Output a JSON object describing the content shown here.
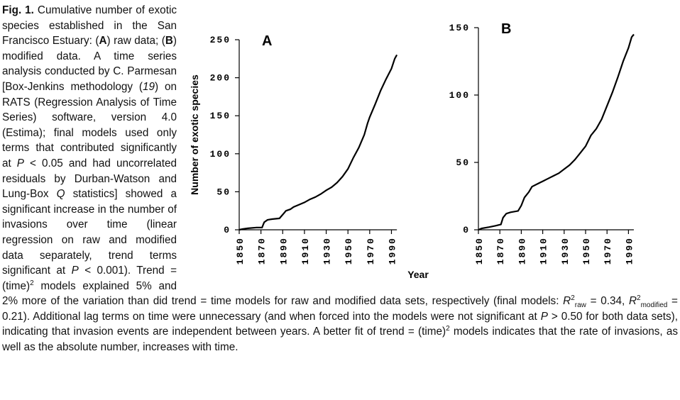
{
  "chart_data": [
    {
      "type": "line",
      "annotation": "A",
      "ylabel": "Number of exotic species",
      "x": [
        1850,
        1853,
        1858,
        1866,
        1871,
        1873,
        1876,
        1880,
        1887,
        1890,
        1893,
        1897,
        1900,
        1905,
        1910,
        1915,
        1920,
        1925,
        1930,
        1935,
        1940,
        1945,
        1950,
        1955,
        1960,
        1965,
        1968,
        1970,
        1975,
        1980,
        1985,
        1990,
        1993,
        1995
      ],
      "values": [
        0,
        1,
        2,
        3,
        3,
        10,
        13,
        14,
        15,
        20,
        25,
        27,
        30,
        33,
        36,
        40,
        43,
        47,
        52,
        56,
        62,
        70,
        80,
        95,
        108,
        125,
        140,
        148,
        165,
        183,
        198,
        212,
        225,
        230
      ],
      "color": "#000000",
      "xlim": [
        1850,
        1995
      ],
      "xticks": [
        1850,
        1870,
        1890,
        1910,
        1930,
        1950,
        1970,
        1990
      ],
      "ylim": [
        0,
        250
      ],
      "yticks": [
        0,
        50,
        100,
        150,
        200,
        250
      ]
    },
    {
      "type": "line",
      "annotation": "B",
      "xlabel": "Year",
      "x": [
        1850,
        1853,
        1860,
        1866,
        1871,
        1873,
        1876,
        1880,
        1887,
        1890,
        1893,
        1897,
        1900,
        1905,
        1910,
        1915,
        1920,
        1925,
        1930,
        1935,
        1940,
        1945,
        1950,
        1955,
        1960,
        1965,
        1970,
        1975,
        1980,
        1985,
        1990,
        1993,
        1995
      ],
      "values": [
        0,
        1,
        2,
        3,
        4,
        9,
        12,
        13,
        14,
        18,
        24,
        28,
        32,
        34,
        36,
        38,
        40,
        42,
        45,
        48,
        52,
        57,
        62,
        70,
        75,
        82,
        92,
        102,
        113,
        125,
        135,
        143,
        145
      ],
      "color": "#000000",
      "xlim": [
        1850,
        1995
      ],
      "xticks": [
        1850,
        1870,
        1890,
        1910,
        1930,
        1950,
        1970,
        1990
      ],
      "ylim": [
        0,
        150
      ],
      "yticks": [
        0,
        50,
        100,
        150
      ]
    }
  ],
  "caption": {
    "runs": [
      {
        "text": "Fig. 1.",
        "style": "b"
      },
      {
        "text": " Cumulative number of exotic species established in the San Francisco Estuary: (",
        "style": ""
      },
      {
        "text": "A",
        "style": "b"
      },
      {
        "text": ") raw data; (",
        "style": ""
      },
      {
        "text": "B",
        "style": "b"
      },
      {
        "text": ") modified data. A time series analysis conducted by C. Parmesan [Box-Jenkins methodology (",
        "style": ""
      },
      {
        "text": "19",
        "style": "i"
      },
      {
        "text": ") on RATS (Regression Analysis of Time Series) software, version 4.0 (Estima); final models used only terms that contributed significantly at ",
        "style": ""
      },
      {
        "text": "P",
        "style": "i"
      },
      {
        "text": " < 0.05 and had uncorrelated residuals by Durban-Watson and Lung-Box ",
        "style": ""
      },
      {
        "text": "Q",
        "style": "i"
      },
      {
        "text": " statistics] showed a significant increase in the number of invasions over time (linear regression on raw and modified data separately, trend terms significant at ",
        "style": ""
      },
      {
        "text": "P",
        "style": "i"
      },
      {
        "text": " < 0.001). Trend = (time)",
        "style": ""
      },
      {
        "text": "2",
        "style": "sup"
      },
      {
        "text": " models explained 5% and 2% more of the variation than did trend = time models for raw and modified data sets, respectively (final models: ",
        "style": ""
      },
      {
        "text": "R",
        "style": "i"
      },
      {
        "text": "2",
        "style": "sup"
      },
      {
        "text": "raw",
        "style": "sub"
      },
      {
        "text": " = 0.34, ",
        "style": ""
      },
      {
        "text": "R",
        "style": "i"
      },
      {
        "text": "2",
        "style": "sup"
      },
      {
        "text": "modified",
        "style": "sub"
      },
      {
        "text": " = 0.21). Additional lag terms on time were unnecessary (and when forced into the models were not significant at ",
        "style": ""
      },
      {
        "text": "P",
        "style": "i"
      },
      {
        "text": " > 0.50 for both data sets), indicating that invasion events are independent between years. A better fit of trend = (time)",
        "style": ""
      },
      {
        "text": "2",
        "style": "sup"
      },
      {
        "text": " models indicates that the rate of invasions, as well as the absolute number, increases with time.",
        "style": ""
      }
    ]
  }
}
